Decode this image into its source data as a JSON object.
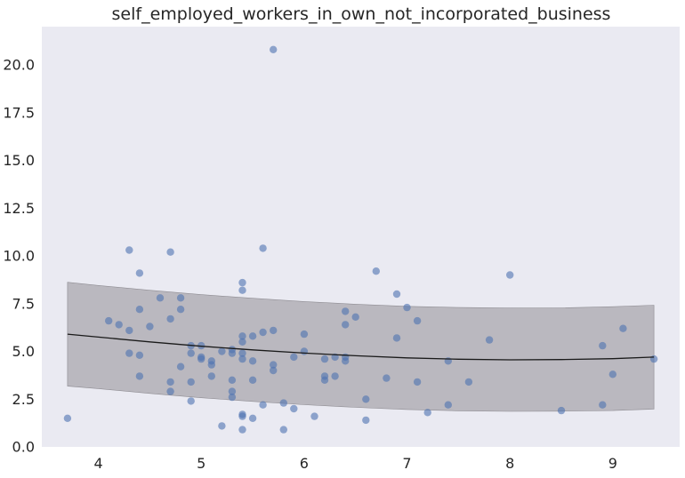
{
  "chart_data": {
    "type": "scatter",
    "title": "self_employed_workers_in_own_not_incorporated_business",
    "xlabel": "",
    "ylabel": "",
    "xlim": [
      3.45,
      9.65
    ],
    "ylim": [
      0.0,
      22.0
    ],
    "x_ticks": [
      4,
      5,
      6,
      7,
      8,
      9
    ],
    "y_ticks": [
      0.0,
      2.5,
      5.0,
      7.5,
      10.0,
      12.5,
      15.0,
      17.5,
      20.0
    ],
    "x_tick_labels": [
      "4",
      "5",
      "6",
      "7",
      "8",
      "9"
    ],
    "y_tick_labels": [
      "0.0",
      "2.5",
      "5.0",
      "7.5",
      "10.0",
      "12.5",
      "15.0",
      "17.5",
      "20.0"
    ],
    "grid": false,
    "background_color": "#eaeaf2",
    "point_color": "#4c72b0",
    "band_color": "#a9a7ad",
    "line_color": "#1a1a1a",
    "points": [
      {
        "x": 3.7,
        "y": 1.5
      },
      {
        "x": 4.1,
        "y": 6.6
      },
      {
        "x": 4.2,
        "y": 6.4
      },
      {
        "x": 4.3,
        "y": 10.3
      },
      {
        "x": 4.3,
        "y": 6.1
      },
      {
        "x": 4.3,
        "y": 4.9
      },
      {
        "x": 4.4,
        "y": 9.1
      },
      {
        "x": 4.4,
        "y": 7.2
      },
      {
        "x": 4.4,
        "y": 4.8
      },
      {
        "x": 4.4,
        "y": 3.7
      },
      {
        "x": 4.5,
        "y": 6.3
      },
      {
        "x": 4.6,
        "y": 7.8
      },
      {
        "x": 4.7,
        "y": 10.2
      },
      {
        "x": 4.7,
        "y": 6.7
      },
      {
        "x": 4.7,
        "y": 3.4
      },
      {
        "x": 4.7,
        "y": 2.9
      },
      {
        "x": 4.8,
        "y": 7.8
      },
      {
        "x": 4.8,
        "y": 7.2
      },
      {
        "x": 4.8,
        "y": 4.2
      },
      {
        "x": 4.9,
        "y": 5.3
      },
      {
        "x": 4.9,
        "y": 4.9
      },
      {
        "x": 4.9,
        "y": 3.4
      },
      {
        "x": 4.9,
        "y": 2.4
      },
      {
        "x": 5.0,
        "y": 5.3
      },
      {
        "x": 5.0,
        "y": 4.7
      },
      {
        "x": 5.0,
        "y": 4.6
      },
      {
        "x": 5.1,
        "y": 4.5
      },
      {
        "x": 5.1,
        "y": 4.3
      },
      {
        "x": 5.1,
        "y": 3.7
      },
      {
        "x": 5.2,
        "y": 5.0
      },
      {
        "x": 5.2,
        "y": 1.1
      },
      {
        "x": 5.3,
        "y": 5.1
      },
      {
        "x": 5.3,
        "y": 4.9
      },
      {
        "x": 5.3,
        "y": 3.5
      },
      {
        "x": 5.3,
        "y": 2.9
      },
      {
        "x": 5.3,
        "y": 2.6
      },
      {
        "x": 5.4,
        "y": 8.6
      },
      {
        "x": 5.4,
        "y": 8.2
      },
      {
        "x": 5.4,
        "y": 5.8
      },
      {
        "x": 5.4,
        "y": 5.5
      },
      {
        "x": 5.4,
        "y": 4.9
      },
      {
        "x": 5.4,
        "y": 4.6
      },
      {
        "x": 5.4,
        "y": 1.7
      },
      {
        "x": 5.4,
        "y": 1.6
      },
      {
        "x": 5.4,
        "y": 0.9
      },
      {
        "x": 5.5,
        "y": 5.8
      },
      {
        "x": 5.5,
        "y": 4.5
      },
      {
        "x": 5.5,
        "y": 3.5
      },
      {
        "x": 5.5,
        "y": 1.5
      },
      {
        "x": 5.6,
        "y": 10.4
      },
      {
        "x": 5.6,
        "y": 6.0
      },
      {
        "x": 5.6,
        "y": 2.2
      },
      {
        "x": 5.7,
        "y": 20.8
      },
      {
        "x": 5.7,
        "y": 6.1
      },
      {
        "x": 5.7,
        "y": 4.3
      },
      {
        "x": 5.7,
        "y": 4.0
      },
      {
        "x": 5.8,
        "y": 2.3
      },
      {
        "x": 5.8,
        "y": 0.9
      },
      {
        "x": 5.9,
        "y": 4.7
      },
      {
        "x": 5.9,
        "y": 2.0
      },
      {
        "x": 6.0,
        "y": 5.9
      },
      {
        "x": 6.0,
        "y": 5.0
      },
      {
        "x": 6.1,
        "y": 1.6
      },
      {
        "x": 6.2,
        "y": 4.6
      },
      {
        "x": 6.2,
        "y": 3.7
      },
      {
        "x": 6.2,
        "y": 3.5
      },
      {
        "x": 6.3,
        "y": 4.7
      },
      {
        "x": 6.3,
        "y": 3.7
      },
      {
        "x": 6.4,
        "y": 7.1
      },
      {
        "x": 6.4,
        "y": 6.4
      },
      {
        "x": 6.4,
        "y": 4.7
      },
      {
        "x": 6.4,
        "y": 4.5
      },
      {
        "x": 6.5,
        "y": 6.8
      },
      {
        "x": 6.6,
        "y": 2.5
      },
      {
        "x": 6.6,
        "y": 1.4
      },
      {
        "x": 6.7,
        "y": 9.2
      },
      {
        "x": 6.8,
        "y": 3.6
      },
      {
        "x": 6.9,
        "y": 8.0
      },
      {
        "x": 6.9,
        "y": 5.7
      },
      {
        "x": 7.0,
        "y": 7.3
      },
      {
        "x": 7.1,
        "y": 6.6
      },
      {
        "x": 7.1,
        "y": 3.4
      },
      {
        "x": 7.2,
        "y": 1.8
      },
      {
        "x": 7.4,
        "y": 4.5
      },
      {
        "x": 7.4,
        "y": 2.2
      },
      {
        "x": 7.6,
        "y": 3.4
      },
      {
        "x": 7.8,
        "y": 5.6
      },
      {
        "x": 8.0,
        "y": 9.0
      },
      {
        "x": 8.5,
        "y": 1.9
      },
      {
        "x": 8.9,
        "y": 5.3
      },
      {
        "x": 8.9,
        "y": 2.2
      },
      {
        "x": 9.0,
        "y": 3.8
      },
      {
        "x": 9.1,
        "y": 6.2
      },
      {
        "x": 9.4,
        "y": 4.6
      }
    ],
    "fit_line": {
      "x": [
        3.7,
        4.0,
        4.5,
        5.0,
        5.5,
        6.0,
        6.5,
        7.0,
        7.5,
        8.0,
        8.5,
        9.0,
        9.4
      ],
      "y": [
        5.9,
        5.75,
        5.5,
        5.27,
        5.08,
        4.91,
        4.77,
        4.66,
        4.59,
        4.56,
        4.57,
        4.62,
        4.7
      ]
    },
    "confidence_band": {
      "x": [
        3.7,
        4.0,
        4.5,
        5.0,
        5.5,
        6.0,
        6.5,
        7.0,
        7.5,
        8.0,
        8.5,
        9.0,
        9.4
      ],
      "upper": [
        8.62,
        8.45,
        8.2,
        7.97,
        7.78,
        7.61,
        7.47,
        7.36,
        7.3,
        7.27,
        7.28,
        7.34,
        7.42
      ],
      "lower": [
        3.18,
        3.05,
        2.8,
        2.57,
        2.38,
        2.21,
        2.07,
        1.96,
        1.89,
        1.86,
        1.87,
        1.9,
        1.98
      ]
    }
  }
}
